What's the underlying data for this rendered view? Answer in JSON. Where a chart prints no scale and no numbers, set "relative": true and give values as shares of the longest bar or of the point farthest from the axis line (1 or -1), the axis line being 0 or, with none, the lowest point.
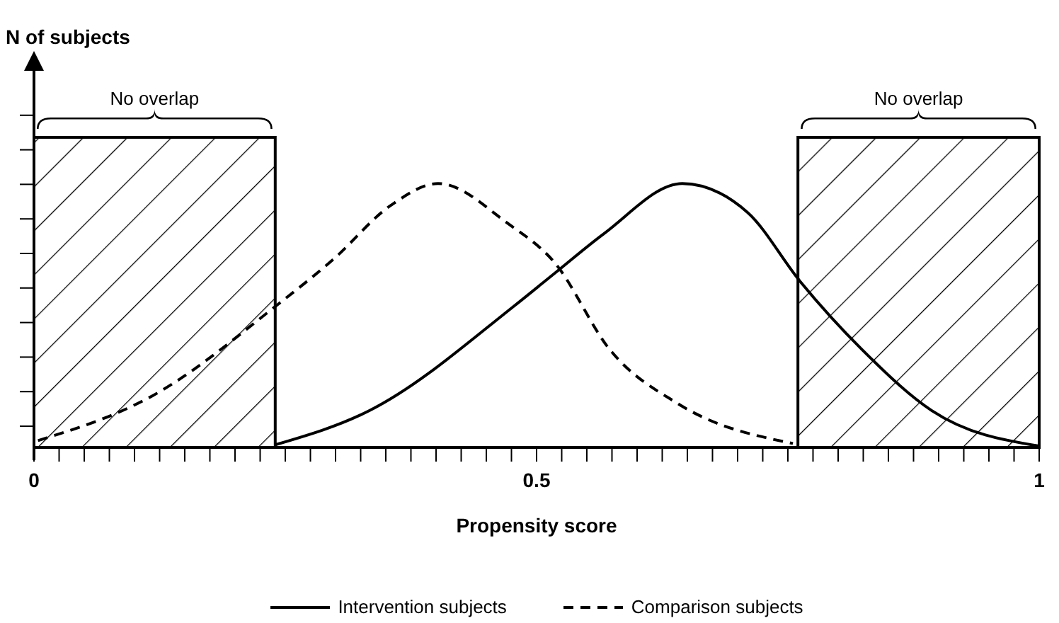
{
  "chart_data": {
    "type": "line",
    "relative": true,
    "annotations": [
      "N of subjects"
    ],
    "xlabel": "Propensity score",
    "xlim": [
      0,
      1
    ],
    "xticks": [
      0,
      {
        "value": 0.025,
        "label": null
      },
      {
        "value": 0.05,
        "label": null
      },
      {
        "value": 0.075,
        "label": null
      },
      {
        "value": 0.1,
        "label": null
      },
      {
        "value": 0.125,
        "label": null
      },
      {
        "value": 0.15,
        "label": null
      },
      {
        "value": 0.175,
        "label": null
      },
      {
        "value": 0.2,
        "label": null
      },
      {
        "value": 0.225,
        "label": null
      },
      {
        "value": 0.25,
        "label": null
      },
      {
        "value": 0.275,
        "label": null
      },
      {
        "value": 0.3,
        "label": null
      },
      {
        "value": 0.325,
        "label": null
      },
      {
        "value": 0.35,
        "label": null
      },
      {
        "value": 0.375,
        "label": null
      },
      {
        "value": 0.4,
        "label": null
      },
      {
        "value": 0.425,
        "label": null
      },
      {
        "value": 0.45,
        "label": null
      },
      {
        "value": 0.475,
        "label": null
      },
      0.5,
      {
        "value": 0.525,
        "label": null
      },
      {
        "value": 0.55,
        "label": null
      },
      {
        "value": 0.575,
        "label": null
      },
      {
        "value": 0.6,
        "label": null
      },
      {
        "value": 0.625,
        "label": null
      },
      {
        "value": 0.65,
        "label": null
      },
      {
        "value": 0.675,
        "label": null
      },
      {
        "value": 0.7,
        "label": null
      },
      {
        "value": 0.725,
        "label": null
      },
      {
        "value": 0.75,
        "label": null
      },
      {
        "value": 0.775,
        "label": null
      },
      {
        "value": 0.8,
        "label": null
      },
      {
        "value": 0.825,
        "label": null
      },
      {
        "value": 0.85,
        "label": null
      },
      {
        "value": 0.875,
        "label": null
      },
      {
        "value": 0.9,
        "label": null
      },
      {
        "value": 0.925,
        "label": null
      },
      {
        "value": 0.95,
        "label": null
      },
      {
        "value": 0.975,
        "label": null
      },
      1
    ],
    "series": [
      {
        "name": "Intervention subjects",
        "color": "#000000",
        "line_style": "solid",
        "x": [
          0.24,
          0.334,
          0.479,
          0.518,
          0.567,
          0.645,
          0.71,
          0.762,
          0.824,
          0.893,
          1.0
        ],
        "values": [
          0.01,
          0.14,
          0.54,
          0.66,
          0.81,
          1.0,
          0.89,
          0.63,
          0.37,
          0.14,
          0.005
        ]
      },
      {
        "name": "Comparison subjects",
        "color": "#000000",
        "line_style": "dashed",
        "x": [
          0.004,
          0.118,
          0.242,
          0.297,
          0.356,
          0.402,
          0.471,
          0.518,
          0.573,
          0.641,
          0.755
        ],
        "values": [
          0.026,
          0.196,
          0.54,
          0.71,
          0.92,
          1.0,
          0.85,
          0.7,
          0.37,
          0.165,
          0.015
        ]
      }
    ],
    "bands": [
      {
        "axis": "x",
        "from": 0,
        "to": 0.24,
        "label": "No overlap"
      },
      {
        "axis": "x",
        "from": 0.76,
        "to": 1,
        "label": "No overlap"
      }
    ],
    "marker": "none",
    "legend": "bottom",
    "grid": false
  }
}
